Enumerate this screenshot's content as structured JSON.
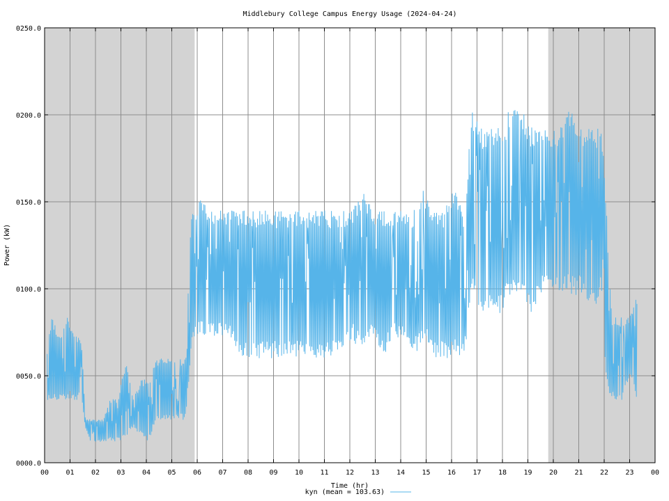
{
  "chart_data": {
    "type": "line",
    "title": "Middlebury College Campus Energy Usage (2024-04-24)",
    "xlabel": "Time (hr)",
    "ylabel": "Power (kW)",
    "xlim": [
      0,
      24
    ],
    "ylim": [
      0,
      250
    ],
    "grid": true,
    "legend_position": "bottom-center",
    "x_tick_labels": [
      "00",
      "01",
      "02",
      "03",
      "04",
      "05",
      "06",
      "07",
      "08",
      "09",
      "10",
      "11",
      "12",
      "13",
      "14",
      "15",
      "16",
      "17",
      "18",
      "19",
      "20",
      "21",
      "22",
      "23",
      "00"
    ],
    "y_tick_labels": [
      "0000.0",
      "0050.0",
      "0100.0",
      "0150.0",
      "0200.0",
      "0250.0"
    ],
    "y_ticks": [
      0,
      50,
      100,
      150,
      200,
      250
    ],
    "shaded_intervals": [
      [
        0,
        5.9
      ],
      [
        19.8,
        24
      ]
    ],
    "series": [
      {
        "name": "kyn (mean = 103.63)",
        "color": "#56b4e9",
        "bands": [
          {
            "x": 0.1,
            "low": 36,
            "high": 73
          },
          {
            "x": 0.3,
            "low": 36,
            "high": 84
          },
          {
            "x": 0.6,
            "low": 36,
            "high": 73
          },
          {
            "x": 0.9,
            "low": 36,
            "high": 84
          },
          {
            "x": 1.2,
            "low": 36,
            "high": 73
          },
          {
            "x": 1.45,
            "low": 36,
            "high": 72
          },
          {
            "x": 1.6,
            "low": 20,
            "high": 25
          },
          {
            "x": 1.8,
            "low": 12,
            "high": 25
          },
          {
            "x": 2.0,
            "low": 12,
            "high": 25
          },
          {
            "x": 2.3,
            "low": 12,
            "high": 25
          },
          {
            "x": 2.6,
            "low": 12,
            "high": 37
          },
          {
            "x": 2.9,
            "low": 12,
            "high": 37
          },
          {
            "x": 3.2,
            "low": 15,
            "high": 60
          },
          {
            "x": 3.5,
            "low": 20,
            "high": 37
          },
          {
            "x": 3.8,
            "low": 15,
            "high": 48
          },
          {
            "x": 4.1,
            "low": 12,
            "high": 48
          },
          {
            "x": 4.4,
            "low": 24,
            "high": 60
          },
          {
            "x": 4.7,
            "low": 24,
            "high": 60
          },
          {
            "x": 5.0,
            "low": 24,
            "high": 60
          },
          {
            "x": 5.3,
            "low": 24,
            "high": 60
          },
          {
            "x": 5.55,
            "low": 24,
            "high": 60
          },
          {
            "x": 5.75,
            "low": 60,
            "high": 145
          },
          {
            "x": 5.9,
            "low": 72,
            "high": 145
          },
          {
            "x": 6.1,
            "low": 72,
            "high": 157
          },
          {
            "x": 6.5,
            "low": 72,
            "high": 145
          },
          {
            "x": 6.9,
            "low": 72,
            "high": 145
          },
          {
            "x": 7.3,
            "low": 72,
            "high": 145
          },
          {
            "x": 7.7,
            "low": 60,
            "high": 145
          },
          {
            "x": 8.1,
            "low": 60,
            "high": 145
          },
          {
            "x": 8.5,
            "low": 60,
            "high": 145
          },
          {
            "x": 8.9,
            "low": 60,
            "high": 145
          },
          {
            "x": 9.3,
            "low": 60,
            "high": 145
          },
          {
            "x": 9.7,
            "low": 60,
            "high": 145
          },
          {
            "x": 10.1,
            "low": 60,
            "high": 145
          },
          {
            "x": 10.5,
            "low": 60,
            "high": 145
          },
          {
            "x": 10.9,
            "low": 60,
            "high": 145
          },
          {
            "x": 11.3,
            "low": 60,
            "high": 145
          },
          {
            "x": 11.7,
            "low": 60,
            "high": 145
          },
          {
            "x": 12.1,
            "low": 72,
            "high": 145
          },
          {
            "x": 12.5,
            "low": 60,
            "high": 157
          },
          {
            "x": 12.9,
            "low": 72,
            "high": 145
          },
          {
            "x": 13.3,
            "low": 60,
            "high": 145
          },
          {
            "x": 13.7,
            "low": 72,
            "high": 145
          },
          {
            "x": 14.1,
            "low": 72,
            "high": 145
          },
          {
            "x": 14.5,
            "low": 60,
            "high": 145
          },
          {
            "x": 14.9,
            "low": 72,
            "high": 157
          },
          {
            "x": 15.3,
            "low": 60,
            "high": 145
          },
          {
            "x": 15.7,
            "low": 60,
            "high": 145
          },
          {
            "x": 16.1,
            "low": 60,
            "high": 157
          },
          {
            "x": 16.5,
            "low": 60,
            "high": 145
          },
          {
            "x": 16.8,
            "low": 96,
            "high": 205
          },
          {
            "x": 17.2,
            "low": 85,
            "high": 193
          },
          {
            "x": 17.6,
            "low": 85,
            "high": 193
          },
          {
            "x": 18.0,
            "low": 85,
            "high": 193
          },
          {
            "x": 18.3,
            "low": 96,
            "high": 205
          },
          {
            "x": 18.7,
            "low": 96,
            "high": 205
          },
          {
            "x": 19.1,
            "low": 85,
            "high": 193
          },
          {
            "x": 19.5,
            "low": 96,
            "high": 193
          },
          {
            "x": 19.9,
            "low": 96,
            "high": 193
          },
          {
            "x": 20.3,
            "low": 96,
            "high": 193
          },
          {
            "x": 20.7,
            "low": 96,
            "high": 205
          },
          {
            "x": 21.1,
            "low": 96,
            "high": 193
          },
          {
            "x": 21.5,
            "low": 85,
            "high": 193
          },
          {
            "x": 21.9,
            "low": 96,
            "high": 193
          },
          {
            "x": 22.1,
            "low": 36,
            "high": 145
          },
          {
            "x": 22.3,
            "low": 36,
            "high": 84
          },
          {
            "x": 22.7,
            "low": 36,
            "high": 84
          },
          {
            "x": 23.0,
            "low": 48,
            "high": 84
          },
          {
            "x": 23.3,
            "low": 36,
            "high": 97
          }
        ]
      }
    ]
  }
}
